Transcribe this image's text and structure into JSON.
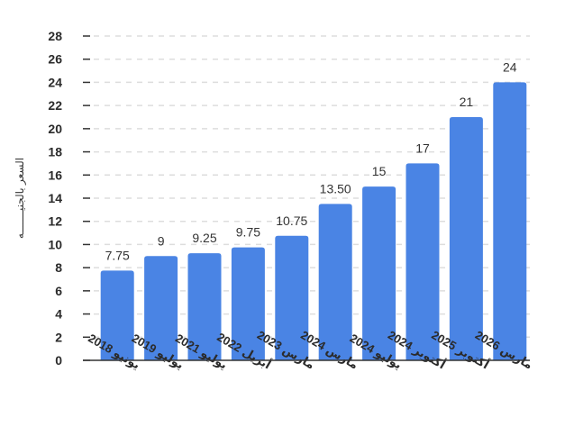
{
  "chart_data": {
    "type": "bar",
    "title": "",
    "xlabel": "",
    "ylabel": "السعر بالجنيـــــــه",
    "categories": [
      "يونيو 2018",
      "يوليو 2019",
      "يوليو 2021",
      "أبريل 2022",
      "مارس 2023",
      "مارس 2024",
      "يوليو 2024",
      "أكتوبر 2024",
      "أكتوبر 2025",
      "مارس 2026"
    ],
    "values": [
      7.75,
      9,
      9.25,
      9.75,
      10.75,
      13.5,
      15,
      17,
      21,
      24
    ],
    "value_labels": [
      "7.75",
      "9",
      "9.25",
      "9.75",
      "10.75",
      "13.50",
      "15",
      "17",
      "21",
      "24"
    ],
    "ylim": [
      0,
      28
    ],
    "yticks": [
      0,
      2,
      4,
      6,
      8,
      10,
      12,
      14,
      16,
      18,
      20,
      22,
      24,
      26,
      28
    ],
    "grid": true,
    "legend": "none",
    "bar_color": "#4a84e4",
    "grid_color": "#dddddd",
    "axis_color": "#333333"
  }
}
